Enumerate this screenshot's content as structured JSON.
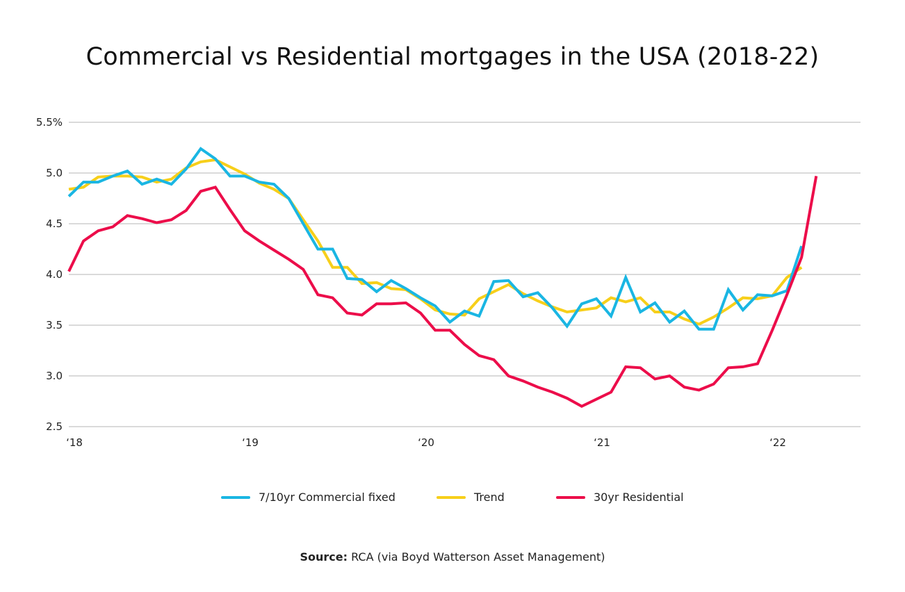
{
  "chart_data": {
    "type": "line",
    "title": "Commercial vs Residential mortgages in the USA (2018-22)",
    "xlabel": "",
    "ylabel": "",
    "ylim": [
      2.5,
      5.5
    ],
    "y_ticks": [
      2.5,
      3.0,
      3.5,
      4.0,
      4.5,
      5.0,
      5.5
    ],
    "y_tick_labels": [
      "2.5",
      "3.0",
      "3.5",
      "4.0",
      "4.5",
      "5.0",
      "5.5%"
    ],
    "x_tick_labels": [
      "‘18",
      "‘19",
      "‘20",
      "‘21",
      "‘22"
    ],
    "x_tick_positions_months": [
      0,
      12,
      24,
      36,
      48
    ],
    "xlim_months": [
      0,
      53
    ],
    "grid": true,
    "legend_position": "bottom",
    "series": [
      {
        "name": "7/10yr Commercial fixed",
        "color": "#1ab6e3",
        "x_months": [
          0,
          1,
          2,
          3,
          4,
          5,
          6,
          7,
          8,
          9,
          10,
          11,
          12,
          13,
          14,
          15,
          16,
          17,
          18,
          19,
          20,
          21,
          22,
          23,
          24,
          25,
          26,
          27,
          28,
          29,
          30,
          31,
          32,
          33,
          34,
          35,
          36,
          37,
          38,
          39,
          40,
          41,
          42,
          43,
          44,
          45,
          46,
          47,
          48,
          49,
          50
        ],
        "values": [
          4.77,
          4.91,
          4.91,
          4.97,
          5.02,
          4.89,
          4.94,
          4.89,
          5.04,
          5.24,
          5.14,
          4.97,
          4.97,
          4.91,
          4.89,
          4.75,
          4.5,
          4.25,
          4.25,
          3.96,
          3.95,
          3.83,
          3.94,
          3.86,
          3.77,
          3.69,
          3.53,
          3.64,
          3.59,
          3.93,
          3.94,
          3.78,
          3.82,
          3.67,
          3.49,
          3.71,
          3.76,
          3.59,
          3.97,
          3.63,
          3.72,
          3.53,
          3.64,
          3.46,
          3.46,
          3.85,
          3.65,
          3.8,
          3.79,
          3.84,
          4.28
        ]
      },
      {
        "name": "Trend",
        "color": "#f7cf1a",
        "x_months": [
          0,
          1,
          2,
          3,
          4,
          5,
          6,
          7,
          8,
          9,
          10,
          11,
          12,
          13,
          14,
          15,
          16,
          17,
          18,
          19,
          20,
          21,
          22,
          23,
          24,
          25,
          26,
          27,
          28,
          29,
          30,
          31,
          32,
          33,
          34,
          35,
          36,
          37,
          38,
          39,
          40,
          41,
          42,
          43,
          44,
          45,
          46,
          47,
          48,
          49,
          50
        ],
        "values": [
          4.84,
          4.86,
          4.96,
          4.97,
          4.97,
          4.96,
          4.91,
          4.94,
          5.05,
          5.11,
          5.13,
          5.06,
          4.99,
          4.9,
          4.84,
          4.75,
          4.54,
          4.33,
          4.07,
          4.07,
          3.91,
          3.92,
          3.86,
          3.85,
          3.76,
          3.65,
          3.61,
          3.6,
          3.76,
          3.83,
          3.9,
          3.81,
          3.74,
          3.68,
          3.63,
          3.65,
          3.67,
          3.77,
          3.73,
          3.77,
          3.63,
          3.63,
          3.56,
          3.51,
          3.58,
          3.67,
          3.77,
          3.76,
          3.79,
          3.97,
          4.07
        ]
      },
      {
        "name": "30yr Residential",
        "color": "#ec0d4a",
        "x_months": [
          0,
          1,
          2,
          3,
          4,
          5,
          6,
          7,
          8,
          9,
          10,
          11,
          12,
          13,
          14,
          15,
          16,
          17,
          18,
          19,
          20,
          21,
          22,
          23,
          24,
          25,
          26,
          27,
          28,
          29,
          30,
          31,
          32,
          33,
          34,
          35,
          36,
          37,
          38,
          39,
          40,
          41,
          42,
          43,
          44,
          45,
          46,
          47,
          48,
          49,
          50,
          51
        ],
        "values": [
          4.03,
          4.33,
          4.43,
          4.47,
          4.58,
          4.55,
          4.51,
          4.54,
          4.63,
          4.82,
          4.86,
          4.64,
          4.43,
          4.33,
          4.24,
          4.15,
          4.05,
          3.8,
          3.77,
          3.62,
          3.6,
          3.71,
          3.71,
          3.72,
          3.62,
          3.45,
          3.45,
          3.31,
          3.2,
          3.16,
          3.0,
          2.95,
          2.89,
          2.84,
          2.78,
          2.7,
          2.77,
          2.84,
          3.09,
          3.08,
          2.97,
          3.0,
          2.89,
          2.86,
          2.92,
          3.08,
          3.09,
          3.12,
          3.45,
          3.8,
          4.17,
          4.97
        ]
      }
    ]
  },
  "legend": {
    "items": [
      {
        "label": "7/10yr Commercial fixed",
        "color": "#1ab6e3"
      },
      {
        "label": "Trend",
        "color": "#f7cf1a"
      },
      {
        "label": "30yr Residential",
        "color": "#ec0d4a"
      }
    ]
  },
  "source": {
    "label": "Source:",
    "text": "RCA (via Boyd Watterson Asset Management)"
  }
}
